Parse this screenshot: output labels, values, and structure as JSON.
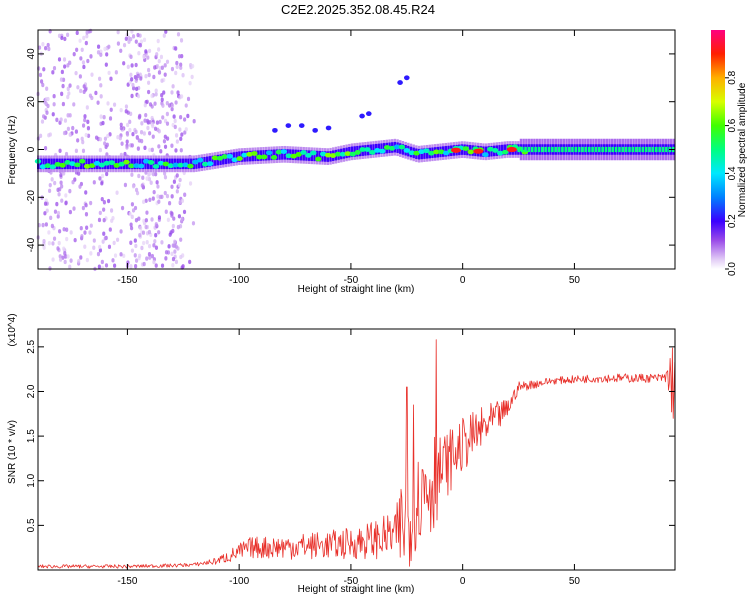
{
  "figure_title": "C2E2.2025.352.08.45.R24",
  "chart_data": [
    {
      "type": "heatmap",
      "title": "C2E2.2025.352.08.45.R24",
      "xlabel": "Height of straight line (km)",
      "ylabel": "Frequency (Hz)",
      "xlim": [
        -190,
        95
      ],
      "ylim": [
        -50,
        50
      ],
      "x_ticks": [
        -150,
        -100,
        -50,
        0,
        50
      ],
      "y_ticks": [
        -40,
        -20,
        0,
        20,
        40
      ],
      "x_tick_labels": [
        "-150",
        "-100",
        "-50",
        "0",
        "50"
      ],
      "y_tick_labels": [
        "-40",
        "-20",
        "0",
        "20",
        "40"
      ],
      "colorbar": {
        "label": "Normalized spectral amplitude",
        "range": [
          0,
          1
        ],
        "ticks": [
          0.0,
          0.2,
          0.4,
          0.6,
          0.8
        ],
        "tick_labels": [
          "0.0",
          "0.2",
          "0.4",
          "0.6",
          "0.8"
        ]
      },
      "ridge": {
        "description": "central frequency of the dominant spectral line vs height",
        "x": [
          -190,
          -160,
          -130,
          -120,
          -100,
          -80,
          -60,
          -50,
          -40,
          -30,
          -20,
          -10,
          0,
          10,
          20,
          40,
          60,
          95
        ],
        "freq": [
          -6,
          -6,
          -6,
          -6,
          -3,
          -2,
          -3,
          -1,
          0,
          1,
          -2,
          -1,
          0,
          -1,
          0,
          0,
          0,
          0
        ],
        "hot_spots": [
          -3,
          7,
          22
        ]
      }
    },
    {
      "type": "line",
      "xlabel": "Height of straight line (km)",
      "ylabel": "SNR (10 * v/v)",
      "y_scale_label": "(x10^4)",
      "xlim": [
        -190,
        95
      ],
      "ylim": [
        0,
        2.7
      ],
      "x_ticks": [
        -150,
        -100,
        -50,
        0,
        50
      ],
      "y_ticks": [
        0.5,
        1.0,
        1.5,
        2.0,
        2.5
      ],
      "x_tick_labels": [
        "-150",
        "-100",
        "-50",
        "0",
        "50"
      ],
      "y_tick_labels": [
        "0.5",
        "1.0",
        "1.5",
        "2.0",
        "2.5"
      ],
      "color": "#e8302a",
      "series": [
        {
          "name": "SNR",
          "envelope_x": [
            -190,
            -150,
            -130,
            -120,
            -110,
            -100,
            -95,
            -80,
            -60,
            -50,
            -40,
            -30,
            -26,
            -20,
            -15,
            -10,
            -5,
            0,
            10,
            20,
            25,
            40,
            60,
            90,
            95
          ],
          "envelope_mean": [
            0.04,
            0.04,
            0.05,
            0.06,
            0.1,
            0.2,
            0.25,
            0.26,
            0.28,
            0.3,
            0.34,
            0.4,
            0.55,
            0.8,
            1.0,
            1.1,
            1.25,
            1.4,
            1.6,
            1.8,
            2.05,
            2.12,
            2.15,
            2.15,
            2.15
          ],
          "envelope_amp": [
            0.02,
            0.02,
            0.02,
            0.02,
            0.04,
            0.1,
            0.12,
            0.14,
            0.16,
            0.18,
            0.22,
            0.26,
            0.7,
            0.5,
            0.8,
            0.4,
            0.35,
            0.3,
            0.25,
            0.12,
            0.06,
            0.04,
            0.05,
            0.05,
            0.6
          ],
          "peaks": [
            [
              -25,
              2.05
            ],
            [
              -12,
              2.58
            ],
            [
              -22,
              1.85
            ]
          ]
        }
      ]
    }
  ]
}
